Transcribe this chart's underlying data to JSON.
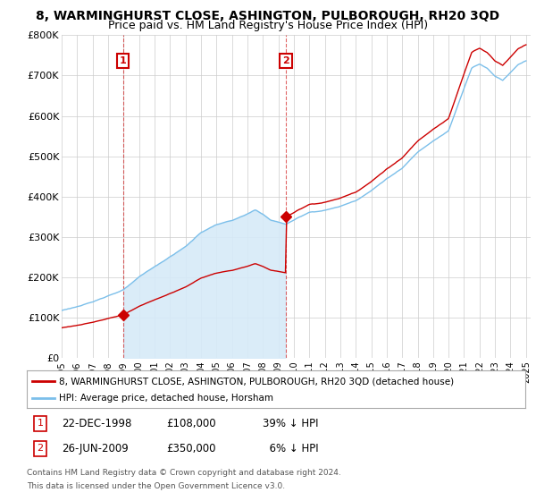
{
  "title": "8, WARMINGHURST CLOSE, ASHINGTON, PULBOROUGH, RH20 3QD",
  "subtitle": "Price paid vs. HM Land Registry's House Price Index (HPI)",
  "ylim": [
    0,
    800000
  ],
  "yticks": [
    0,
    100000,
    200000,
    300000,
    400000,
    500000,
    600000,
    700000,
    800000
  ],
  "ytick_labels": [
    "£0",
    "£100K",
    "£200K",
    "£300K",
    "£400K",
    "£500K",
    "£600K",
    "£700K",
    "£800K"
  ],
  "hpi_color": "#7bbfea",
  "hpi_fill_color": "#d6eaf8",
  "price_color": "#cc0000",
  "marker_color": "#cc0000",
  "background_color": "#ffffff",
  "grid_color": "#cccccc",
  "legend_label_price": "8, WARMINGHURST CLOSE, ASHINGTON, PULBOROUGH, RH20 3QD (detached house)",
  "legend_label_hpi": "HPI: Average price, detached house, Horsham",
  "sale1_date": 1998.97,
  "sale1_price": 108000,
  "sale2_date": 2009.48,
  "sale2_price": 350000,
  "footnote3": "Contains HM Land Registry data © Crown copyright and database right 2024.",
  "footnote4": "This data is licensed under the Open Government Licence v3.0.",
  "title_fontsize": 10,
  "subtitle_fontsize": 9,
  "hpi_keypoints_x": [
    1995,
    1996,
    1997,
    1998,
    1999,
    2000,
    2001,
    2002,
    2003,
    2004,
    2005,
    2006,
    2007,
    2007.5,
    2008,
    2008.5,
    2009,
    2009.5,
    2010,
    2011,
    2012,
    2013,
    2014,
    2015,
    2016,
    2017,
    2018,
    2019,
    2020,
    2021,
    2021.5,
    2022,
    2022.5,
    2023,
    2023.5,
    2024,
    2024.5,
    2025
  ],
  "hpi_keypoints_y": [
    118000,
    128000,
    138000,
    155000,
    170000,
    200000,
    225000,
    250000,
    275000,
    310000,
    330000,
    340000,
    355000,
    365000,
    355000,
    340000,
    335000,
    330000,
    340000,
    360000,
    365000,
    375000,
    390000,
    415000,
    445000,
    470000,
    510000,
    540000,
    565000,
    670000,
    720000,
    730000,
    720000,
    700000,
    690000,
    710000,
    730000,
    740000
  ]
}
